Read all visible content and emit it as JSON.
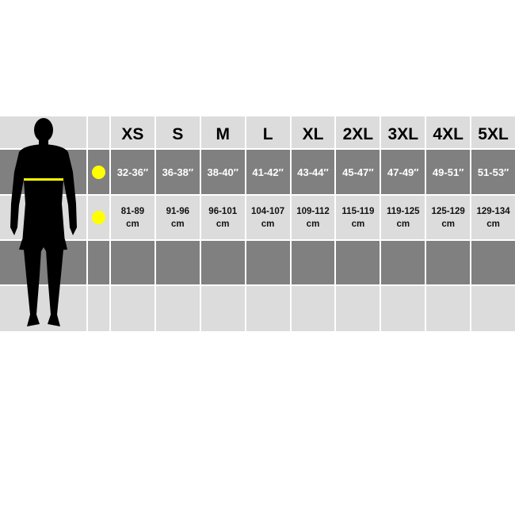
{
  "sizes": [
    "XS",
    "S",
    "M",
    "L",
    "XL",
    "2XL",
    "3XL",
    "4XL",
    "5XL"
  ],
  "chest_inches": [
    "32-36″",
    "36-38″",
    "38-40″",
    "41-42″",
    "43-44″",
    "45-47″",
    "47-49″",
    "49-51″",
    "51-53″"
  ],
  "chest_cm": [
    "81-89",
    "91-96",
    "96-101",
    "104-107",
    "109-112",
    "115-119",
    "119-125",
    "125-129",
    "129-134"
  ],
  "cm_unit": "cm",
  "colors": {
    "marker": "#ffff00",
    "light_row": "#dcdcdc",
    "dark_row": "#808080",
    "silhouette": "#000000"
  },
  "icons": {
    "figure": "male-silhouette-icon",
    "chest_marker": "yellow-dot-icon"
  }
}
